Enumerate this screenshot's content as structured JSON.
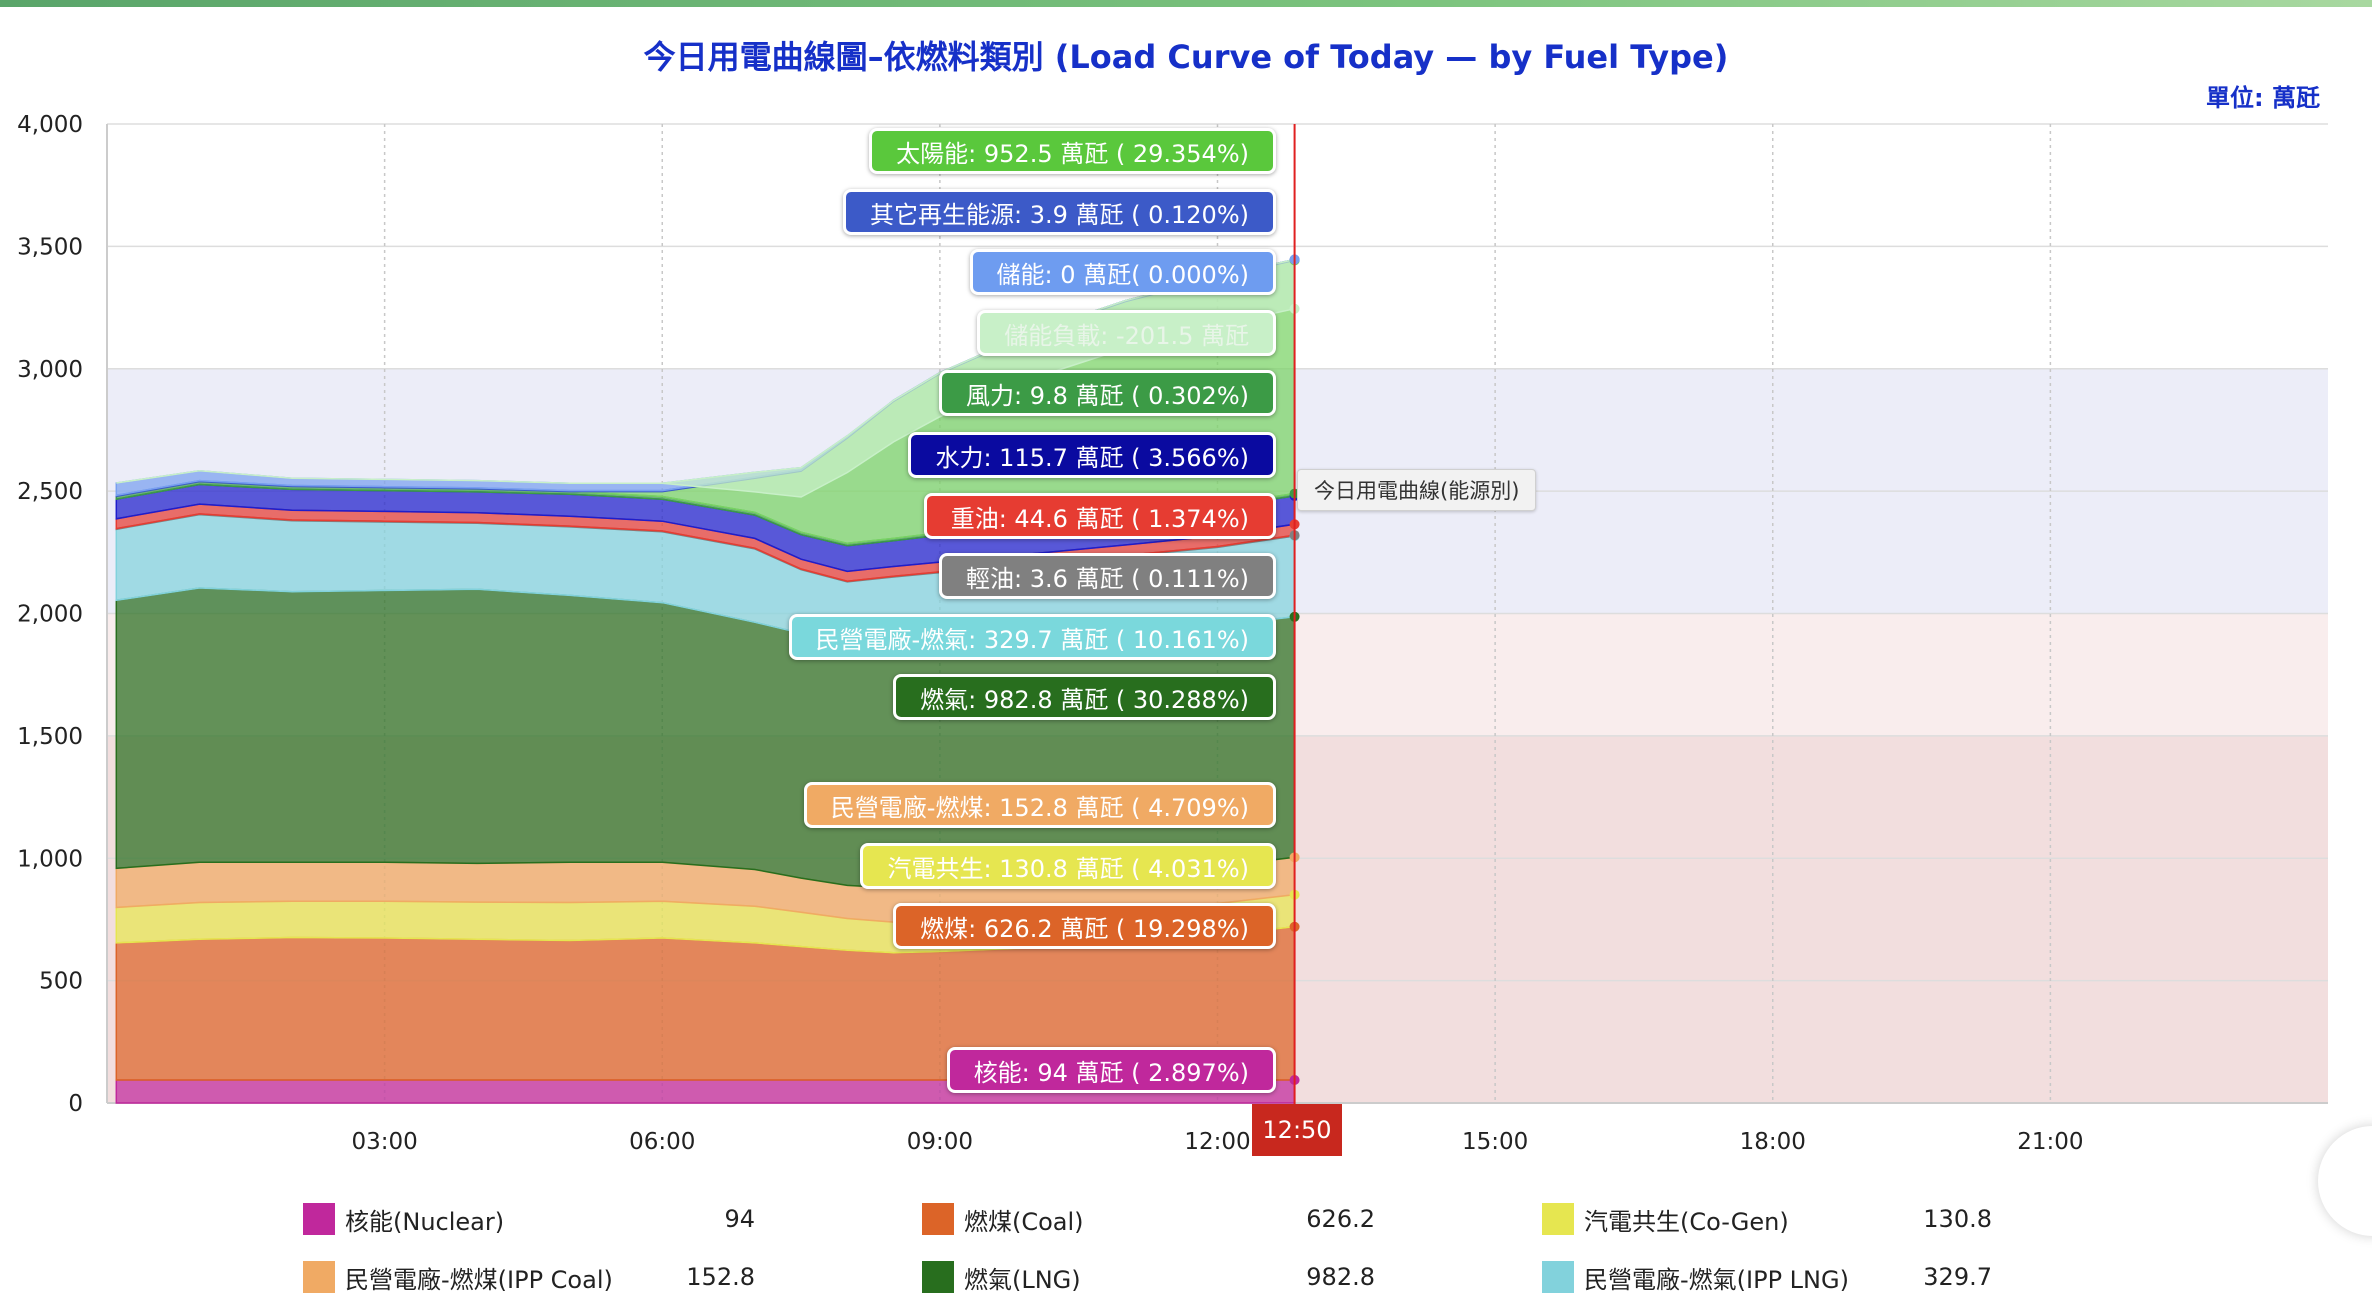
{
  "page": {
    "title": "今日用電曲線圖–依燃料類別 (Load Curve of Today — by Fuel Type)",
    "unit": "單位: 萬瓩",
    "cursor_time": "12:50",
    "side_tag": "今日用電曲線(能源別)"
  },
  "chart_data": {
    "type": "area",
    "stacked": true,
    "title": "今日用電曲線圖–依燃料類別 (Load Curve of Today — by Fuel Type)",
    "ylabel": "萬瓩",
    "ylim": [
      0,
      4000
    ],
    "yticks": [
      0,
      500,
      1000,
      1500,
      2000,
      2500,
      3000,
      3500,
      4000
    ],
    "ytick_labels": [
      "0",
      "500",
      "1,000",
      "1,500",
      "2,000",
      "2,500",
      "3,000",
      "3,500",
      "4,000"
    ],
    "xlim_hours": [
      0,
      24
    ],
    "xticks": [
      3,
      6,
      9,
      12,
      15,
      18,
      21
    ],
    "xtick_labels": [
      "03:00",
      "06:00",
      "09:00",
      "12:00",
      "15:00",
      "18:00",
      "21:00"
    ],
    "cursor_hour": 12.833,
    "bands": [
      {
        "from": 0,
        "to": 1500,
        "color": "#f2dede"
      },
      {
        "from": 1500,
        "to": 2000,
        "color": "#f9eded"
      },
      {
        "from": 2000,
        "to": 3000,
        "color": "#ecedf8"
      }
    ],
    "x_hours": [
      0.1,
      1,
      2,
      3,
      4,
      5,
      6,
      7,
      7.5,
      8,
      8.5,
      9,
      10,
      11,
      12,
      12.83
    ],
    "series": [
      {
        "name": "核能(Nuclear)",
        "color": "#c0289c",
        "values": [
          94,
          94,
          94,
          94,
          94,
          94,
          94,
          94,
          94,
          94,
          94,
          94,
          94,
          94,
          94,
          94
        ]
      },
      {
        "name": "燃煤(Coal)",
        "color": "#dc6428",
        "values": [
          560,
          575,
          582,
          580,
          575,
          570,
          580,
          560,
          545,
          530,
          520,
          525,
          540,
          560,
          590,
          626.2
        ]
      },
      {
        "name": "汽電共生(Co-Gen)",
        "color": "#e6e650",
        "values": [
          145,
          150,
          148,
          150,
          152,
          155,
          150,
          150,
          140,
          130,
          125,
          128,
          130,
          132,
          131,
          130.8
        ]
      },
      {
        "name": "民營電廠-燃煤(IPP Coal)",
        "color": "#f0aa64",
        "values": [
          160,
          165,
          160,
          160,
          158,
          165,
          160,
          150,
          140,
          135,
          140,
          140,
          145,
          148,
          150,
          152.8
        ]
      },
      {
        "name": "燃氣(LNG)",
        "color": "#286e1e",
        "values": [
          1095,
          1120,
          1105,
          1110,
          1120,
          1090,
          1060,
          1010,
          1000,
          1030,
          1020,
          1010,
          1000,
          990,
          985,
          982.8
        ]
      },
      {
        "name": "民營電廠-燃氣(IPP LNG)",
        "color": "#82d2dc",
        "values": [
          290,
          300,
          290,
          280,
          270,
          280,
          290,
          300,
          260,
          210,
          250,
          270,
          290,
          310,
          320,
          329.7
        ]
      },
      {
        "name": "輕油(Diesel)",
        "color": "#808080",
        "values": [
          3,
          3,
          3,
          3,
          3,
          3,
          3,
          3,
          3,
          3,
          3,
          3,
          3,
          3,
          3.6,
          3.6
        ]
      },
      {
        "name": "重油(Oil)",
        "color": "#e63c32",
        "values": [
          40,
          40,
          40,
          40,
          40,
          40,
          40,
          40,
          40,
          40,
          40,
          40,
          42,
          43,
          44,
          44.6
        ]
      },
      {
        "name": "水力(Hydro)",
        "color": "#1e1ecc",
        "values": [
          80,
          80,
          85,
          85,
          85,
          90,
          90,
          95,
          100,
          105,
          105,
          110,
          112,
          114,
          115,
          115.7
        ]
      },
      {
        "name": "風力(Wind)",
        "color": "#3c9b46",
        "values": [
          12,
          12,
          12,
          12,
          12,
          11,
          11,
          11,
          10,
          10,
          10,
          10,
          10,
          10,
          10,
          9.8
        ]
      },
      {
        "name": "太陽能(Solar)",
        "color": "#78d264",
        "values": [
          0,
          0,
          0,
          0,
          0,
          0,
          20,
          140,
          250,
          430,
          560,
          650,
          780,
          870,
          930,
          952.5
        ]
      },
      {
        "name": "其它再生能源(Other Renewable)",
        "color": "#3c5ac8",
        "values": [
          4,
          4,
          4,
          4,
          4,
          4,
          4,
          4,
          4,
          4,
          4,
          4,
          4,
          4,
          4,
          3.9
        ]
      },
      {
        "name": "儲能(Storage)",
        "color": "#78a0f0",
        "values": [
          50,
          40,
          30,
          30,
          30,
          30,
          30,
          20,
          10,
          5,
          0,
          0,
          0,
          0,
          0,
          0
        ]
      },
      {
        "name": "儲能負載(Storage Load)",
        "color": "#c8f0c8",
        "values": [
          0,
          0,
          0,
          0,
          0,
          0,
          0,
          -80,
          -120,
          -150,
          -170,
          -180,
          -190,
          -195,
          -200,
          -201.5
        ]
      }
    ],
    "tooltips": [
      {
        "text": "太陽能: 952.5 萬瓩 ( 29.354%)",
        "color": "#5ac83c"
      },
      {
        "text": "其它再生能源: 3.9 萬瓩 ( 0.120%)",
        "color": "#3c5ac8"
      },
      {
        "text": "儲能: 0 萬瓩( 0.000%)",
        "color": "#6e9cf0"
      },
      {
        "text": "儲能負載: -201.5 萬瓩",
        "color": "#c8f0c8",
        "text_color": "#e8f5e8"
      },
      {
        "text": "風力: 9.8 萬瓩 ( 0.302%)",
        "color": "#3c9b46"
      },
      {
        "text": "水力: 115.7 萬瓩 ( 3.566%)",
        "color": "#0a0aa0"
      },
      {
        "text": "重油: 44.6 萬瓩 ( 1.374%)",
        "color": "#e63c32"
      },
      {
        "text": "輕油: 3.6 萬瓩 ( 0.111%)",
        "color": "#808080"
      },
      {
        "text": "民營電廠-燃氣: 329.7 萬瓩 ( 10.161%)",
        "color": "#7ad8dc"
      },
      {
        "text": "燃氣: 982.8 萬瓩 ( 30.288%)",
        "color": "#286e1e"
      },
      {
        "text": "民營電廠-燃煤: 152.8 萬瓩 ( 4.709%)",
        "color": "#f0aa64"
      },
      {
        "text": "汽電共生: 130.8 萬瓩 ( 4.031%)",
        "color": "#e6e650"
      },
      {
        "text": "燃煤: 626.2 萬瓩 ( 19.298%)",
        "color": "#dc6428"
      },
      {
        "text": "核能: 94 萬瓩 ( 2.897%)",
        "color": "#c0289c"
      }
    ]
  },
  "legend": [
    {
      "label": "核能(Nuclear)",
      "value": "94",
      "color": "#c0289c"
    },
    {
      "label": "燃煤(Coal)",
      "value": "626.2",
      "color": "#dc6428"
    },
    {
      "label": "汽電共生(Co-Gen)",
      "value": "130.8",
      "color": "#e6e650"
    },
    {
      "label": "民營電廠-燃煤(IPP Coal)",
      "value": "152.8",
      "color": "#f0aa64"
    },
    {
      "label": "燃氣(LNG)",
      "value": "982.8",
      "color": "#286e1e"
    },
    {
      "label": "民營電廠-燃氣(IPP LNG)",
      "value": "329.7",
      "color": "#82d2dc"
    }
  ]
}
